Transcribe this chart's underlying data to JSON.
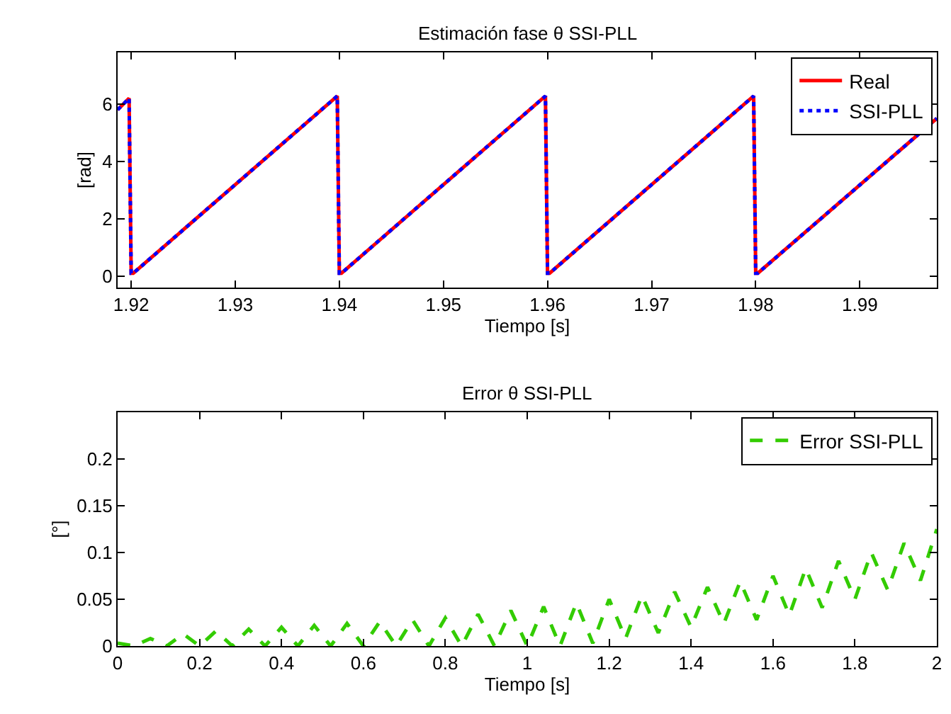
{
  "chart_data": [
    {
      "type": "line",
      "title": "Estimación fase θ SSI-PLL",
      "xlabel": "Tiempo [s]",
      "ylabel": "[rad]",
      "xlim": [
        1.9187,
        1.9974
      ],
      "ylim": [
        -0.4,
        7.8
      ],
      "xticks": [
        1.92,
        1.93,
        1.94,
        1.95,
        1.96,
        1.97,
        1.98,
        1.99
      ],
      "yticks": [
        0,
        2,
        4,
        6
      ],
      "legend": "top right",
      "marker": "none",
      "series": [
        {
          "name": "Real",
          "color": "#ff0000",
          "line_style": "solid",
          "x": [
            1.9187,
            1.9198,
            1.92,
            1.9202,
            1.9398,
            1.94,
            1.9402,
            1.9598,
            1.96,
            1.9602,
            1.9798,
            1.98,
            1.9802,
            1.9974
          ],
          "values": [
            5.8,
            6.2,
            0.1,
            0.1,
            6.28,
            0.1,
            0.1,
            6.28,
            0.1,
            0.1,
            6.28,
            0.1,
            0.1,
            5.5
          ]
        },
        {
          "name": "SSI-PLL",
          "color": "#0000ff",
          "line_style": "dotted",
          "x": [
            1.9187,
            1.9198,
            1.92,
            1.9202,
            1.9398,
            1.94,
            1.9402,
            1.9598,
            1.96,
            1.9602,
            1.9798,
            1.98,
            1.9802,
            1.9974
          ],
          "values": [
            5.8,
            6.2,
            0.1,
            0.1,
            6.28,
            0.1,
            0.1,
            6.28,
            0.1,
            0.1,
            6.28,
            0.1,
            0.1,
            5.5
          ]
        }
      ]
    },
    {
      "type": "line",
      "title": "Error θ SSI-PLL",
      "xlabel": "Tiempo [s]",
      "ylabel": "[°]",
      "xlim": [
        0,
        2
      ],
      "ylim": [
        0,
        0.25
      ],
      "xticks": [
        0,
        0.2,
        0.4,
        0.6,
        0.8,
        1,
        1.2,
        1.4,
        1.6,
        1.8,
        2
      ],
      "yticks": [
        0,
        0.05,
        0.1,
        0.15,
        0.2
      ],
      "legend": "top right",
      "marker": "none",
      "series": [
        {
          "name": "Error SSI-PLL",
          "color": "#33cc00",
          "line_style": "dashed",
          "x": [
            0,
            0.04,
            0.08,
            0.12,
            0.16,
            0.2,
            0.24,
            0.28,
            0.32,
            0.36,
            0.4,
            0.44,
            0.48,
            0.52,
            0.56,
            0.6,
            0.64,
            0.68,
            0.72,
            0.76,
            0.8,
            0.84,
            0.88,
            0.92,
            0.96,
            1.0,
            1.04,
            1.08,
            1.12,
            1.16,
            1.2,
            1.24,
            1.28,
            1.32,
            1.36,
            1.4,
            1.44,
            1.48,
            1.52,
            1.56,
            1.6,
            1.64,
            1.68,
            1.72,
            1.76,
            1.8,
            1.84,
            1.88,
            1.92,
            1.96,
            2.0
          ],
          "values": [
            0.003,
            0,
            0.008,
            0,
            0.013,
            0,
            0.016,
            0,
            0.018,
            0,
            0.02,
            0,
            0.022,
            0,
            0.024,
            0,
            0.026,
            0,
            0.028,
            0,
            0.03,
            0,
            0.034,
            0,
            0.038,
            0,
            0.042,
            0,
            0.046,
            0.003,
            0.05,
            0.008,
            0.054,
            0.014,
            0.058,
            0.02,
            0.063,
            0.024,
            0.069,
            0.028,
            0.075,
            0.033,
            0.083,
            0.041,
            0.091,
            0.05,
            0.1,
            0.06,
            0.11,
            0.07,
            0.125
          ]
        }
      ]
    }
  ]
}
